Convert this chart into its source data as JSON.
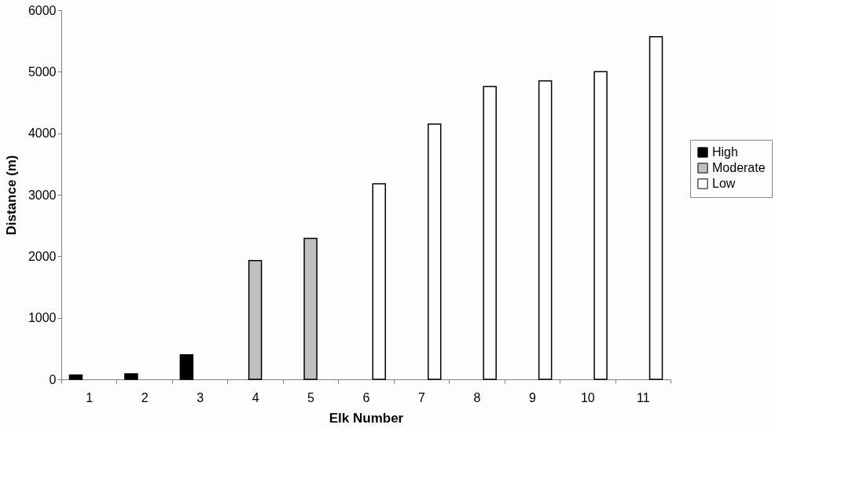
{
  "chart_data": {
    "type": "bar",
    "xlabel": "Elk Number",
    "ylabel": "Distance (m)",
    "categories": [
      "1",
      "2",
      "3",
      "4",
      "5",
      "6",
      "7",
      "8",
      "9",
      "10",
      "11"
    ],
    "series": [
      {
        "name": "High",
        "color": "#000000",
        "values": [
          70,
          90,
          400,
          null,
          null,
          null,
          null,
          null,
          null,
          null,
          null
        ]
      },
      {
        "name": "Moderate",
        "color": "#c0c0c0",
        "values": [
          null,
          null,
          null,
          1930,
          2290,
          null,
          null,
          null,
          null,
          null,
          null
        ]
      },
      {
        "name": "Low",
        "color": "#ffffff",
        "values": [
          null,
          null,
          null,
          null,
          null,
          3180,
          4150,
          4760,
          4850,
          5000,
          5570
        ]
      }
    ],
    "ylim": [
      0,
      6000
    ],
    "yticks": [
      0,
      1000,
      2000,
      3000,
      4000,
      5000,
      6000
    ],
    "grid": false,
    "legend": "right"
  }
}
